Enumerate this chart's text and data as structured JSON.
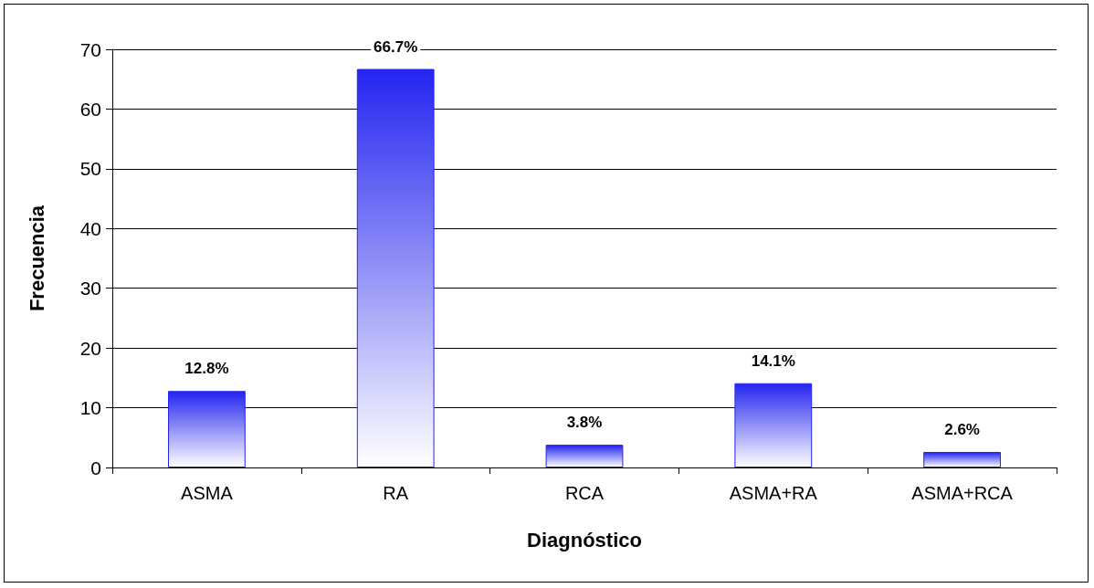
{
  "chart_data": {
    "type": "bar",
    "xlabel": "Diagnóstico",
    "ylabel": "Frecuencia",
    "categories": [
      "ASMA",
      "RA",
      "RCA",
      "ASMA+RA",
      "ASMA+RCA"
    ],
    "values": [
      12.8,
      66.7,
      3.8,
      14.1,
      2.6
    ],
    "value_labels": [
      "12.8%",
      "66.7%",
      "3.8%",
      "14.1%",
      "2.6%"
    ],
    "color": "#2424f0",
    "ylim": [
      0,
      70
    ],
    "yticks": [
      0,
      10,
      20,
      30,
      40,
      50,
      60,
      70
    ],
    "grid": "y"
  }
}
